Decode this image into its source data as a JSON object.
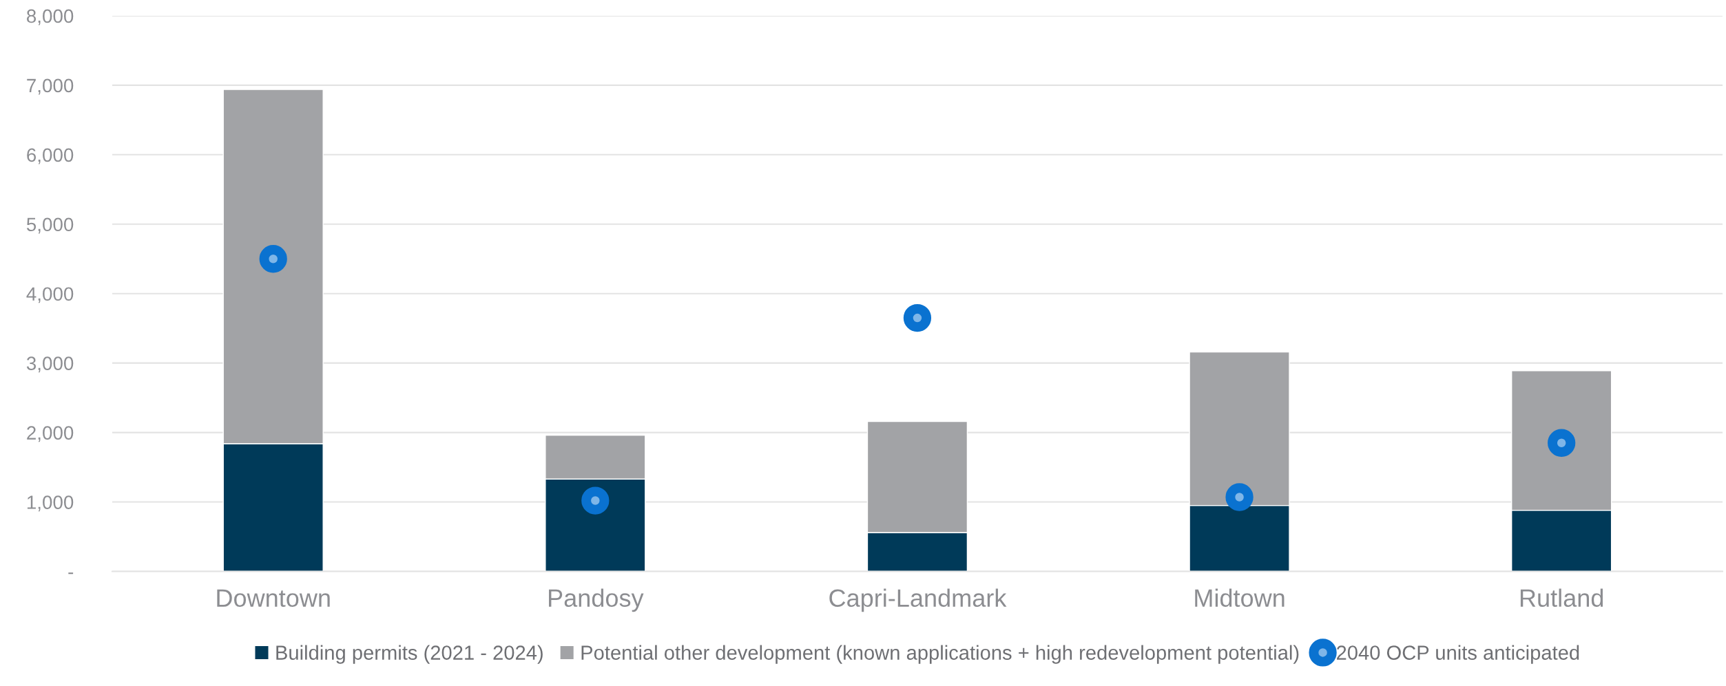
{
  "chart_data": {
    "type": "bar",
    "stacked": true,
    "categories": [
      "Downtown",
      "Pandosy",
      "Capri-Landmark",
      "Midtown",
      "Rutland"
    ],
    "series": [
      {
        "name": "Building permits (2021 - 2024)",
        "color": "#003a59",
        "values": [
          1840,
          1330,
          560,
          950,
          880
        ]
      },
      {
        "name": "Potential other development (known applications + high redevelopment potential)",
        "color": "#a2a3a6",
        "values": [
          5100,
          630,
          1600,
          2210,
          2010
        ]
      },
      {
        "name": "2040 OCP units anticipated",
        "type": "scatter",
        "color": "#0a72d0",
        "marker": "circle",
        "values": [
          4500,
          1020,
          3650,
          1070,
          1850
        ]
      }
    ],
    "ylim": [
      0,
      8000
    ],
    "yticks": [
      {
        "value": 0,
        "label": "-"
      },
      {
        "value": 1000,
        "label": "1,000"
      },
      {
        "value": 2000,
        "label": "2,000"
      },
      {
        "value": 3000,
        "label": "3,000"
      },
      {
        "value": 4000,
        "label": "4,000"
      },
      {
        "value": 5000,
        "label": "5,000"
      },
      {
        "value": 6000,
        "label": "6,000"
      },
      {
        "value": 7000,
        "label": "7,000"
      },
      {
        "value": 8000,
        "label": "8,000"
      }
    ],
    "grid": "y",
    "legend": "bottom"
  }
}
